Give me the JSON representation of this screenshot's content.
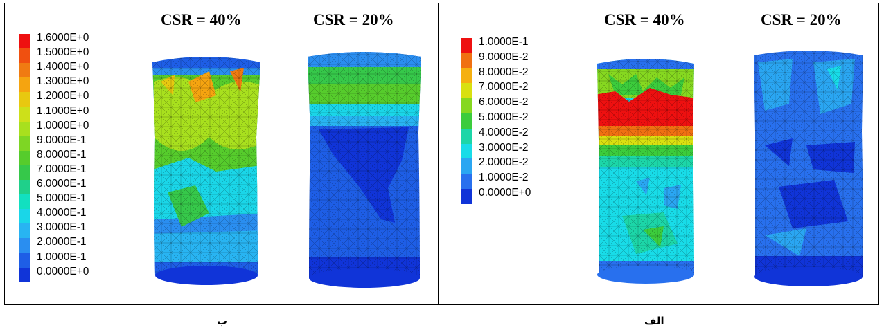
{
  "panels": [
    {
      "caption": "ب",
      "titles": [
        "CSR = 40%",
        "CSR = 20%"
      ],
      "legend": [
        "1.6000E+0",
        "1.5000E+0",
        "1.4000E+0",
        "1.3000E+0",
        "1.2000E+0",
        "1.1000E+0",
        "1.0000E+0",
        "9.0000E-1",
        "8.0000E-1",
        "7.0000E-1",
        "6.0000E-1",
        "5.0000E-1",
        "4.0000E-1",
        "3.0000E-1",
        "2.0000E-1",
        "1.0000E-1",
        "0.0000E+0"
      ]
    },
    {
      "caption": "الف",
      "titles": [
        "CSR = 40%",
        "CSR = 20%"
      ],
      "legend": [
        "1.0000E-1",
        "9.0000E-2",
        "8.0000E-2",
        "7.0000E-2",
        "6.0000E-2",
        "5.0000E-2",
        "4.0000E-2",
        "3.0000E-2",
        "2.0000E-2",
        "1.0000E-2",
        "0.0000E+0"
      ]
    }
  ],
  "colors": {
    "scale16": [
      "#ee1010",
      "#f05010",
      "#f07b12",
      "#f5a410",
      "#e8c810",
      "#cde01a",
      "#a8e01e",
      "#7ed624",
      "#56cc2c",
      "#36c84a",
      "#1fd08a",
      "#12e0c0",
      "#1ad6e8",
      "#28b4f2",
      "#2a8ef0",
      "#1e5ee6",
      "#1034d8"
    ],
    "scale10": [
      "#ee1010",
      "#f07012",
      "#f5b010",
      "#d9e010",
      "#86d820",
      "#3ccc3c",
      "#1cd6a8",
      "#18dce8",
      "#2aa6f2",
      "#2870ee",
      "#1034d8"
    ]
  },
  "icons": {
    "specimen": "cylinder-contour-plot"
  }
}
